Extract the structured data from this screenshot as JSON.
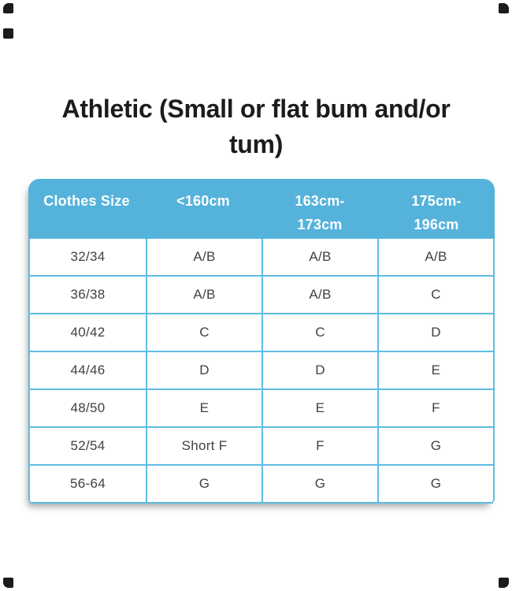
{
  "title": {
    "text": "Athletic (Small or flat bum and/or\ntum)"
  },
  "colors": {
    "header_bg": "#55B3DB",
    "border_color": "#5FBCE3",
    "header_text": "#ffffff",
    "body_text": "#414042",
    "title_color": "#1c1c1e",
    "mark_color": "#1b1b1b"
  },
  "table": {
    "columns": [
      "Clothes Size",
      "<160cm",
      "163cm-\n173cm",
      "175cm-\n196cm"
    ],
    "rows": [
      {
        "size": "32/34",
        "values": [
          "A/B",
          "A/B",
          "A/B"
        ]
      },
      {
        "size": "36/38",
        "values": [
          "A/B",
          "A/B",
          "C"
        ]
      },
      {
        "size": "40/42",
        "values": [
          "C",
          "C",
          "D"
        ]
      },
      {
        "size": "44/46",
        "values": [
          "D",
          "D",
          "E"
        ]
      },
      {
        "size": "48/50",
        "values": [
          "E",
          "E",
          "F"
        ]
      },
      {
        "size": "52/54",
        "values": [
          "Short F",
          "F",
          "G"
        ]
      },
      {
        "size": "56-64",
        "values": [
          "G",
          "G",
          "G"
        ]
      }
    ]
  },
  "decorations": {
    "corner_marks": [
      "top-left",
      "left-upper",
      "top-right",
      "bottom-left",
      "bottom-right"
    ]
  },
  "chart_data": {
    "type": "table",
    "title": "Athletic (Small or flat bum and/or tum)",
    "columns": [
      "Clothes Size",
      "<160cm",
      "163cm-173cm",
      "175cm-196cm"
    ],
    "rows": [
      [
        "32/34",
        "A/B",
        "A/B",
        "A/B"
      ],
      [
        "36/38",
        "A/B",
        "A/B",
        "C"
      ],
      [
        "40/42",
        "C",
        "C",
        "D"
      ],
      [
        "44/46",
        "D",
        "D",
        "E"
      ],
      [
        "48/50",
        "E",
        "E",
        "F"
      ],
      [
        "52/54",
        "Short F",
        "F",
        "G"
      ],
      [
        "56-64",
        "G",
        "G",
        "G"
      ]
    ]
  }
}
